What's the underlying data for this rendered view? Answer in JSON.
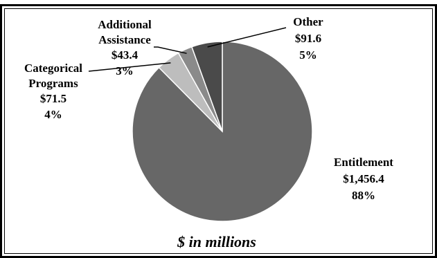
{
  "chart_data": {
    "type": "pie",
    "title": "",
    "unit_note": "$ in millions",
    "slices": [
      {
        "name": "Entitlement",
        "value_label": "$1,456.4",
        "value": 1456.4,
        "percent": "88%",
        "color": "#676767"
      },
      {
        "name": "Categorical Programs",
        "name_lines": [
          "Categorical",
          "Programs"
        ],
        "value_label": "$71.5",
        "value": 71.5,
        "percent": "4%",
        "color": "#bdbdbd"
      },
      {
        "name": "Additional Assistance",
        "name_lines": [
          "Additional",
          "Assistance"
        ],
        "value_label": "$43.4",
        "value": 43.4,
        "percent": "3%",
        "color": "#8a8a8a"
      },
      {
        "name": "Other",
        "value_label": "$91.6",
        "value": 91.6,
        "percent": "5%",
        "color": "#4a4a4a"
      }
    ]
  }
}
